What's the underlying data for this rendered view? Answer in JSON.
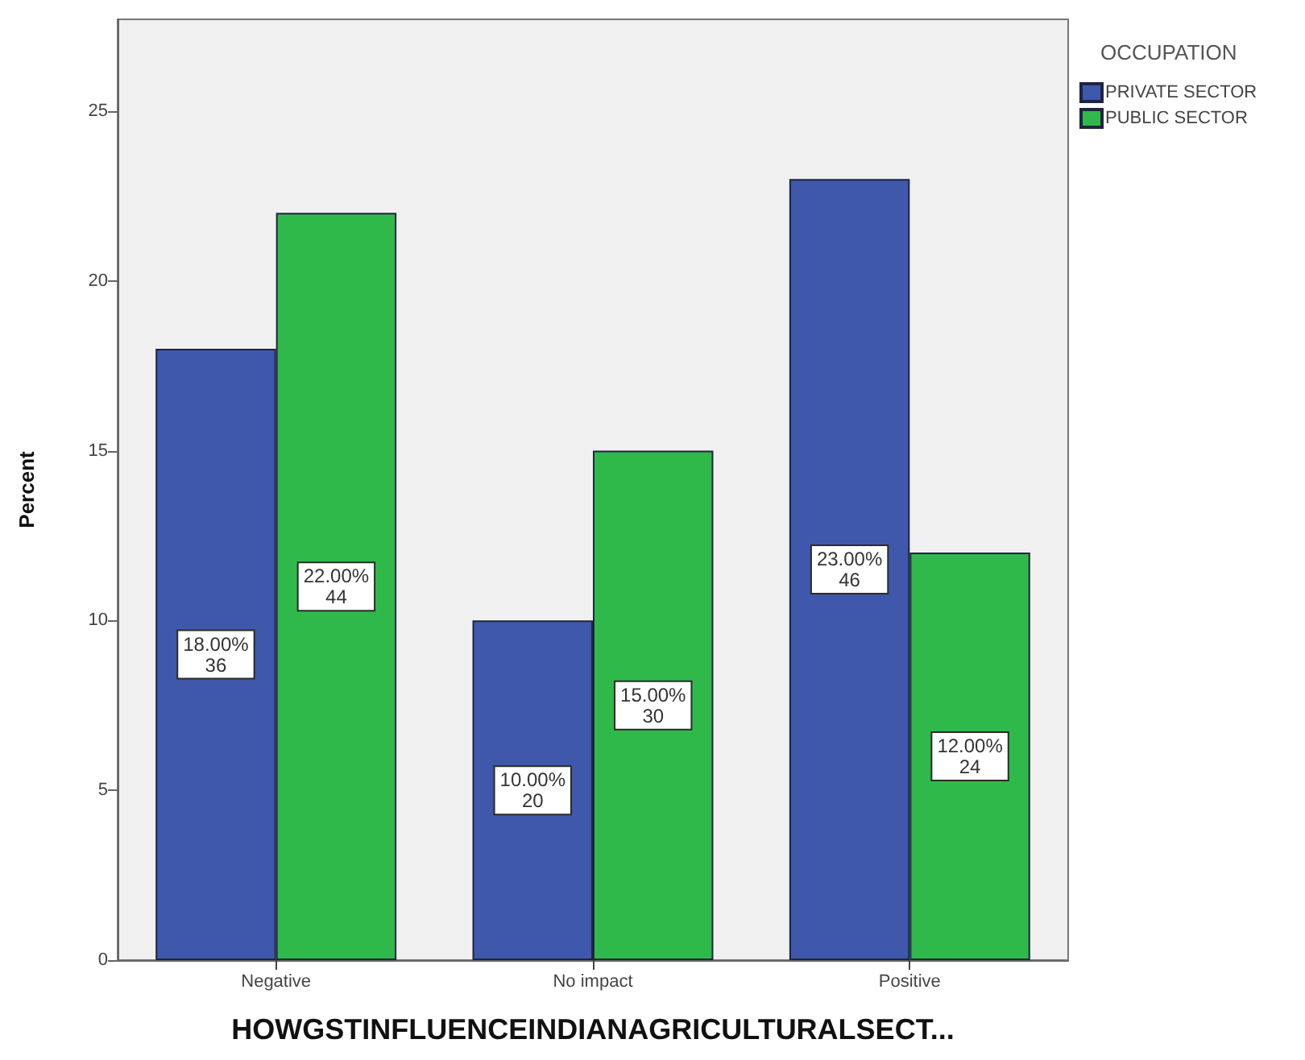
{
  "chart_data": {
    "type": "bar",
    "categories": [
      "Negative",
      "No impact",
      "Positive"
    ],
    "xlabel": "HOWGSTINFLUENCEINDIANAGRICULTURALSECT...",
    "ylabel": "Percent",
    "legend_title": "OCCUPATION",
    "legend": "top right",
    "series": [
      {
        "name": "PRIVATE SECTOR",
        "color": "#3f58ab",
        "values": [
          18,
          10,
          23
        ],
        "value_labels": [
          "18.00%\n36",
          "10.00%\n20",
          "23.00%\n46"
        ]
      },
      {
        "name": "PUBLIC SECTOR",
        "color": "#2fb94a",
        "values": [
          22,
          15,
          12
        ],
        "value_labels": [
          "22.00%\n44",
          "15.00%\n30",
          "12.00%\n24"
        ]
      }
    ],
    "ylim": [
      0,
      27.7
    ],
    "yticks": [
      0,
      5,
      10,
      15,
      20,
      25
    ]
  }
}
